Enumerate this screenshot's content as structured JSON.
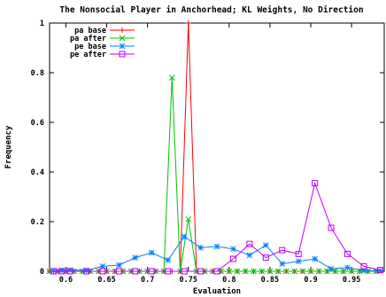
{
  "chart_data": {
    "type": "line",
    "title": "The Nonsocial Player in Anchorhead; KL Weights, No Direction",
    "xlabel": "Evaluation",
    "ylabel": "Frequency",
    "xlim": [
      0.58,
      0.99
    ],
    "ylim": [
      0,
      1
    ],
    "xticks": [
      "0.6",
      "0.65",
      "0.7",
      "0.75",
      "0.8",
      "0.85",
      "0.9",
      "0.95"
    ],
    "yticks": [
      "0",
      "0.2",
      "0.4",
      "0.6",
      "0.8",
      "1"
    ],
    "grid": false,
    "legend_position": "top-left",
    "series": [
      {
        "name": "pa base",
        "color": "#ff0000",
        "marker": "plus",
        "x": [
          0.58,
          0.59,
          0.6,
          0.61,
          0.62,
          0.63,
          0.64,
          0.65,
          0.66,
          0.67,
          0.68,
          0.69,
          0.7,
          0.71,
          0.72,
          0.73,
          0.74,
          0.75,
          0.76,
          0.77,
          0.78,
          0.79,
          0.8,
          0.81,
          0.82,
          0.83,
          0.84,
          0.85,
          0.86,
          0.87,
          0.88,
          0.89,
          0.9,
          0.91,
          0.92,
          0.93,
          0.94,
          0.95,
          0.96,
          0.97,
          0.98
        ],
        "y": [
          0,
          0,
          0,
          0,
          0,
          0,
          0,
          0,
          0,
          0,
          0,
          0,
          0,
          0,
          0,
          0,
          0,
          1.0,
          0,
          0,
          0,
          0,
          0,
          0,
          0,
          0,
          0,
          0,
          0,
          0,
          0,
          0,
          0,
          0,
          0,
          0,
          0,
          0,
          0,
          0,
          0
        ]
      },
      {
        "name": "pa after",
        "color": "#00c000",
        "marker": "cross",
        "x": [
          0.58,
          0.59,
          0.6,
          0.61,
          0.62,
          0.63,
          0.64,
          0.65,
          0.66,
          0.67,
          0.68,
          0.69,
          0.7,
          0.71,
          0.72,
          0.73,
          0.74,
          0.75,
          0.76,
          0.77,
          0.78,
          0.79,
          0.8,
          0.81,
          0.82,
          0.83,
          0.84,
          0.85,
          0.86,
          0.87,
          0.88,
          0.89,
          0.9,
          0.91,
          0.92,
          0.93,
          0.94,
          0.95,
          0.96,
          0.97,
          0.98
        ],
        "y": [
          0,
          0,
          0,
          0,
          0,
          0,
          0,
          0,
          0,
          0,
          0,
          0,
          0,
          0,
          0,
          0.78,
          0,
          0.21,
          0,
          0,
          0,
          0,
          0,
          0,
          0,
          0,
          0,
          0,
          0,
          0,
          0,
          0,
          0,
          0,
          0,
          0,
          0,
          0,
          0,
          0,
          0
        ]
      },
      {
        "name": "pe base",
        "color": "#0080ff",
        "marker": "star",
        "x": [
          0.585,
          0.595,
          0.605,
          0.625,
          0.645,
          0.665,
          0.685,
          0.705,
          0.725,
          0.745,
          0.765,
          0.785,
          0.805,
          0.825,
          0.845,
          0.865,
          0.885,
          0.905,
          0.925,
          0.945,
          0.965,
          0.985
        ],
        "y": [
          0.002,
          0.003,
          0.005,
          0.003,
          0.02,
          0.025,
          0.055,
          0.075,
          0.045,
          0.14,
          0.095,
          0.1,
          0.09,
          0.065,
          0.105,
          0.03,
          0.04,
          0.05,
          0.01,
          0.015,
          0.003,
          0.002
        ]
      },
      {
        "name": "pe after",
        "color": "#c000ff",
        "marker": "square",
        "x": [
          0.585,
          0.595,
          0.605,
          0.625,
          0.645,
          0.665,
          0.685,
          0.705,
          0.725,
          0.745,
          0.765,
          0.785,
          0.805,
          0.825,
          0.845,
          0.865,
          0.885,
          0.905,
          0.925,
          0.945,
          0.965,
          0.985
        ],
        "y": [
          0,
          0,
          0,
          0,
          0,
          0,
          0,
          0,
          0,
          0,
          0,
          0,
          0.05,
          0.11,
          0.055,
          0.085,
          0.07,
          0.355,
          0.175,
          0.07,
          0.02,
          0.005
        ]
      }
    ]
  }
}
